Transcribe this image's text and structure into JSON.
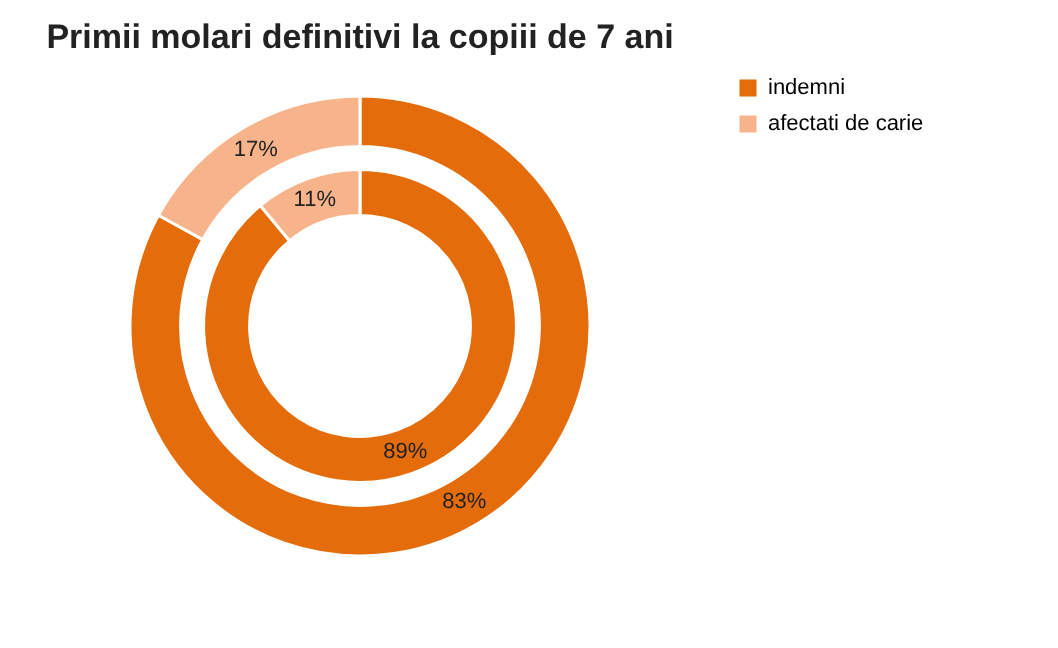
{
  "chart_data": {
    "type": "donut",
    "title": "Primii molari definitivi la copiii de 7 ani",
    "categories": [
      "indemni",
      "afectati de carie"
    ],
    "colors": [
      "#e46c0a",
      "#f7b48a"
    ],
    "series": [
      {
        "values": [
          89,
          11
        ],
        "value_labels": [
          "89%",
          "11%"
        ]
      },
      {
        "values": [
          83,
          17
        ],
        "value_labels": [
          "83%",
          "17%"
        ]
      }
    ],
    "legend": "right"
  }
}
